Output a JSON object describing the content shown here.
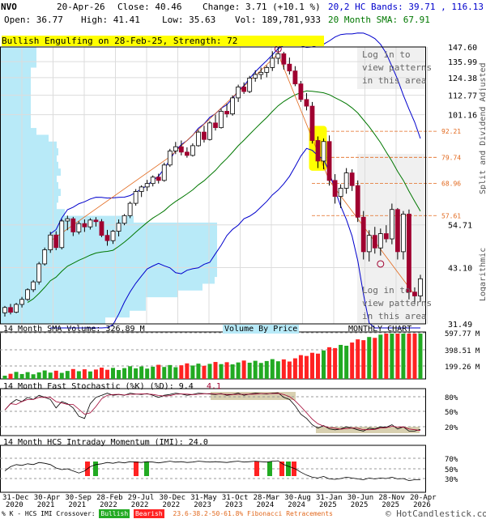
{
  "header": {
    "symbol": "NVO",
    "date": "20-Apr-26",
    "close": "Close: 40.46",
    "change": "Change: 3.71 (+10.1 %)",
    "open": "Open: 36.77",
    "high": "High: 41.41",
    "low": "Low: 35.63",
    "vol": "Vol: 189,781,933",
    "bands": "20,2 HC Bands: 39.71 , 116.13",
    "sma": "20 Month SMA: 67.91"
  },
  "pattern_banner": "Bullish Engulfing on 28-Feb-25, Strength: 72",
  "login_top": [
    "Log in to",
    "view patterns",
    "in this area"
  ],
  "login_bottom": [
    "Log in to",
    "view patterns",
    "in this area"
  ],
  "right_axis_label": "Split and Dividend Adjusted",
  "right_axis_label2": "Logarithmic",
  "panels": {
    "volume_label": "14 Month SMA Volume: 326.89 M",
    "vbp_label": "Volume By Price",
    "chart_type_label": "MONTHLY CHART",
    "stoch_label": "14 Month Fast Stochastic (%K) (%D): 9.4",
    "stoch_d": "4.1",
    "imi_label": "14 Month HCS Intraday Momentum (IMI): 24.0"
  },
  "footer": {
    "crossover_text": "% K - HCS IMI Crossover:",
    "bullish": "Bullish",
    "bearish": "Bearish",
    "fib_text": "23.6-38.2-50-61.8% Fibonacci Retracements",
    "copyright": "© HotCandlestick.com"
  },
  "colors": {
    "up": "#ffffff",
    "down": "#a00030",
    "volume_up": "#22aa22",
    "volume_down": "#ff2222",
    "bands": "#0000cc",
    "sma": "#007700",
    "fib": "#e2691e",
    "vbp": "#b8eaf8"
  },
  "chart_data": {
    "type": "candlestick",
    "price_axis": {
      "scale": "log",
      "ticks": [
        "147.60",
        "135.99",
        "124.38",
        "112.77",
        "101.16",
        "54.71",
        "43.10",
        "31.49"
      ],
      "fib_levels": [
        "92.21",
        "79.74",
        "68.96",
        "57.61"
      ]
    },
    "x_tick_labels": [
      "31-Dec\n2020",
      "30-Apr\n2021",
      "30-Sep\n2021",
      "28-Feb\n2022",
      "29-Jul\n2022",
      "30-Dec\n2022",
      "31-May\n2023",
      "31-Oct\n2023",
      "28-Mar\n2024",
      "30-Aug\n2024",
      "31-Jan\n2025",
      "30-Jun\n2025",
      "28-Nov\n2025",
      "20-Apr\n2026"
    ],
    "candles": [
      [
        33.5,
        34.8,
        32.8,
        34.5
      ],
      [
        34.5,
        35.2,
        33.2,
        33.6
      ],
      [
        33.6,
        35.4,
        33.4,
        35.1
      ],
      [
        35.1,
        36.6,
        34.5,
        36.1
      ],
      [
        36.1,
        38.4,
        35.8,
        38.1
      ],
      [
        38.1,
        40.2,
        37.6,
        39.8
      ],
      [
        39.8,
        44.5,
        39.2,
        44.0
      ],
      [
        44.0,
        48.2,
        43.6,
        47.6
      ],
      [
        47.6,
        52.6,
        46.8,
        51.7
      ],
      [
        51.7,
        52.8,
        47.5,
        48.2
      ],
      [
        48.2,
        56.5,
        47.7,
        55.9
      ],
      [
        55.9,
        57.6,
        53.1,
        56.6
      ],
      [
        56.6,
        57.2,
        51.4,
        52.6
      ],
      [
        52.6,
        55.8,
        51.9,
        55.1
      ],
      [
        55.1,
        56.4,
        52.6,
        54.1
      ],
      [
        54.1,
        56.8,
        53.3,
        56.2
      ],
      [
        56.2,
        57.1,
        54.2,
        55.7
      ],
      [
        55.7,
        56.5,
        51.1,
        51.6
      ],
      [
        51.6,
        53.2,
        48.7,
        50.1
      ],
      [
        50.1,
        53.2,
        49.2,
        52.8
      ],
      [
        52.8,
        56.4,
        51.3,
        55.2
      ],
      [
        55.2,
        58.1,
        54.6,
        57.6
      ],
      [
        57.6,
        62.3,
        56.8,
        61.7
      ],
      [
        61.7,
        66.8,
        60.9,
        65.9
      ],
      [
        65.9,
        68.2,
        63.9,
        67.6
      ],
      [
        67.6,
        70.3,
        66.1,
        68.9
      ],
      [
        68.9,
        72.1,
        67.8,
        71.4
      ],
      [
        71.4,
        72.8,
        68.9,
        70.1
      ],
      [
        70.1,
        77.4,
        69.6,
        76.4
      ],
      [
        76.4,
        83.6,
        75.6,
        82.6
      ],
      [
        82.6,
        86.9,
        81.2,
        84.6
      ],
      [
        84.6,
        87.6,
        80.6,
        82.1
      ],
      [
        82.1,
        84.3,
        79.6,
        80.6
      ],
      [
        80.6,
        86.2,
        80.1,
        85.1
      ],
      [
        85.1,
        92.8,
        84.6,
        91.8
      ],
      [
        91.8,
        95.1,
        86.6,
        88.1
      ],
      [
        88.1,
        97.6,
        87.6,
        96.6
      ],
      [
        96.6,
        101.2,
        92.6,
        94.1
      ],
      [
        94.1,
        104.6,
        93.6,
        103.1
      ],
      [
        103.1,
        107.6,
        99.6,
        101.6
      ],
      [
        101.6,
        112.6,
        100.6,
        111.1
      ],
      [
        111.1,
        119.6,
        108.6,
        118.1
      ],
      [
        118.1,
        121.1,
        113.6,
        115.1
      ],
      [
        115.1,
        125.6,
        114.1,
        124.1
      ],
      [
        124.1,
        129.6,
        121.6,
        126.6
      ],
      [
        126.6,
        131.6,
        123.1,
        128.1
      ],
      [
        128.1,
        133.1,
        124.6,
        131.6
      ],
      [
        131.6,
        144.1,
        129.1,
        138.6
      ],
      [
        138.6,
        147.6,
        134.1,
        142.1
      ],
      [
        142.1,
        143.6,
        130.1,
        134.1
      ],
      [
        134.1,
        139.1,
        126.6,
        129.1
      ],
      [
        129.1,
        132.6,
        118.6,
        120.1
      ],
      [
        120.1,
        122.1,
        108.6,
        110.1
      ],
      [
        110.1,
        114.1,
        103.6,
        106.1
      ],
      [
        106.1,
        108.6,
        86.1,
        87.6
      ],
      [
        87.6,
        89.6,
        75.1,
        78.1
      ],
      [
        78.1,
        88.6,
        74.6,
        87.1
      ],
      [
        87.1,
        90.1,
        68.1,
        70.1
      ],
      [
        70.1,
        72.6,
        61.6,
        64.1
      ],
      [
        64.1,
        68.6,
        60.1,
        67.1
      ],
      [
        67.1,
        75.1,
        65.1,
        73.1
      ],
      [
        73.1,
        74.6,
        66.1,
        68.1
      ],
      [
        68.1,
        70.1,
        55.6,
        57.1
      ],
      [
        57.1,
        59.1,
        45.1,
        47.1
      ],
      [
        47.1,
        53.1,
        44.6,
        51.6
      ],
      [
        51.6,
        54.1,
        46.6,
        48.1
      ],
      [
        48.1,
        53.6,
        46.1,
        52.1
      ],
      [
        52.1,
        54.6,
        49.6,
        50.6
      ],
      [
        50.6,
        61.6,
        49.1,
        59.6
      ],
      [
        59.6,
        60.1,
        45.1,
        47.1
      ],
      [
        47.1,
        59.1,
        45.1,
        58.1
      ],
      [
        58.1,
        59.6,
        36.1,
        37.6
      ],
      [
        37.6,
        38.6,
        35.1,
        36.8
      ],
      [
        36.8,
        41.4,
        35.6,
        40.5
      ]
    ],
    "volume_axis": [
      "597.77 M",
      "398.51 M",
      "199.26 M"
    ],
    "stoch_axis": [
      "80%",
      "50%",
      "20%"
    ],
    "imi_axis": [
      "70%",
      "50%",
      "30%"
    ]
  }
}
